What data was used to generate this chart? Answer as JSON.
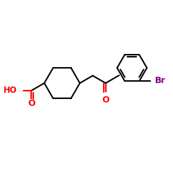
{
  "background_color": "#ffffff",
  "bond_color": "#000000",
  "oxygen_color": "#ff0000",
  "bromine_color": "#800080",
  "lw": 1.5,
  "figsize": [
    2.5,
    2.5
  ],
  "dpi": 100,
  "xlim": [
    0,
    10
  ],
  "ylim": [
    0,
    10
  ]
}
